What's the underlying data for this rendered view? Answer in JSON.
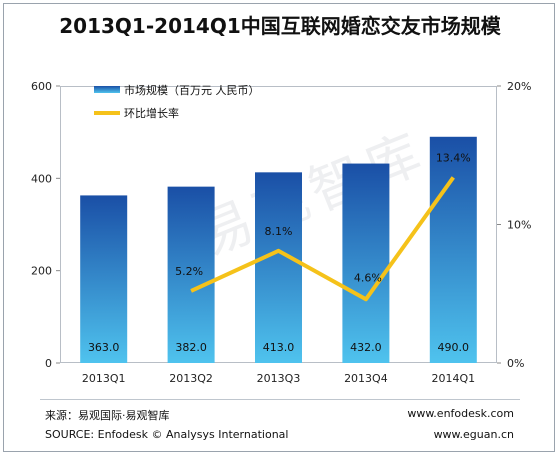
{
  "title": "2013Q1-2014Q1中国互联网婚恋交友市场规模",
  "watermark": "易观智库",
  "footer": {
    "source_cn": "来源：易观国际·易观智库",
    "source_en": "SOURCE: Enfodesk © Analysys International",
    "url1": "www.enfodesk.com",
    "url2": "www.eguan.cn"
  },
  "colors": {
    "bar_top": "#1a4fa6",
    "bar_bottom": "#4fc3ee",
    "line": "#f5c21a",
    "axis_text": "#222222"
  },
  "chart_data": {
    "type": "bar+line",
    "categories": [
      "2013Q1",
      "2013Q2",
      "2013Q3",
      "2013Q4",
      "2014Q1"
    ],
    "series": [
      {
        "name": "市场规模（百万元 人民币）",
        "type": "bar",
        "axis": "left",
        "values": [
          363.0,
          382.0,
          413.0,
          432.0,
          490.0
        ],
        "labels": [
          "363.0",
          "382.0",
          "413.0",
          "432.0",
          "490.0"
        ]
      },
      {
        "name": "环比增长率",
        "type": "line",
        "axis": "right",
        "values": [
          null,
          5.2,
          8.1,
          4.6,
          13.4
        ],
        "labels": [
          "",
          "5.2%",
          "8.1%",
          "4.6%",
          "13.4%"
        ]
      }
    ],
    "left_axis": {
      "ylim": [
        0,
        600
      ],
      "ticks": [
        "0",
        "200",
        "400",
        "600"
      ]
    },
    "right_axis": {
      "ylim": [
        0,
        20
      ],
      "ticks": [
        "0%",
        "10%",
        "20%"
      ]
    },
    "grid": false,
    "legend_position": "top-left"
  }
}
